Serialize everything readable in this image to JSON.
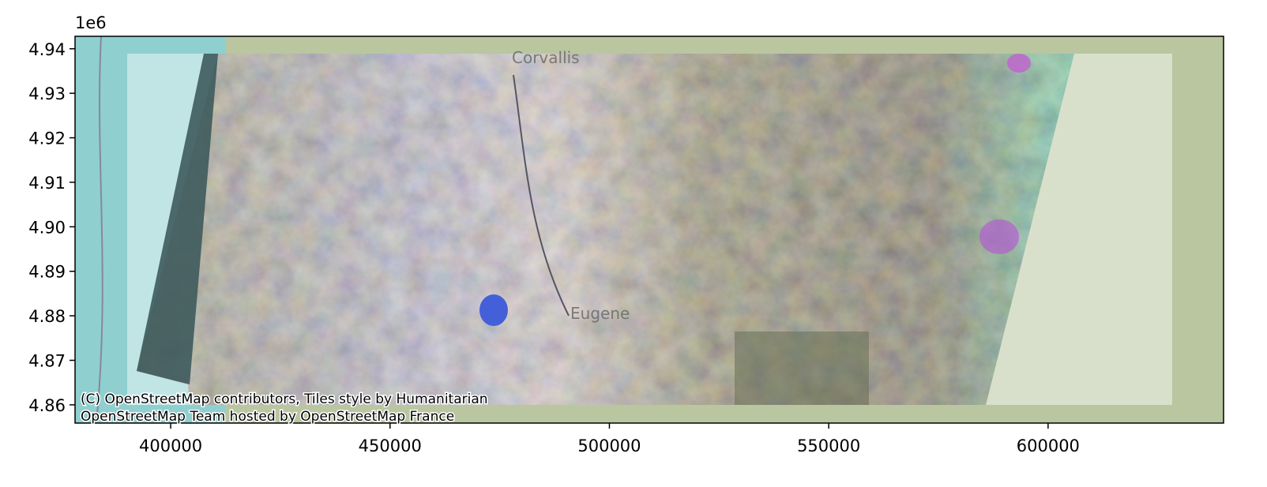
{
  "chart_data": {
    "type": "map",
    "offset_label": "1e6",
    "xlim": [
      378200,
      640000
    ],
    "ylim": [
      4.8559,
      4.9428
    ],
    "xticks": [
      400000,
      450000,
      500000,
      550000,
      600000
    ],
    "yticks": [
      4.86,
      4.87,
      4.88,
      4.89,
      {
        "value": 4.9,
        "label": "4.90"
      },
      4.91,
      4.92,
      4.93,
      4.94
    ],
    "places": [
      "Corvallis",
      "Eugene"
    ],
    "attribution": [
      "(C) OpenStreetMap contributors, Tiles style by Humanitarian",
      "OpenStreetMap Team hosted by OpenStreetMap France"
    ]
  }
}
